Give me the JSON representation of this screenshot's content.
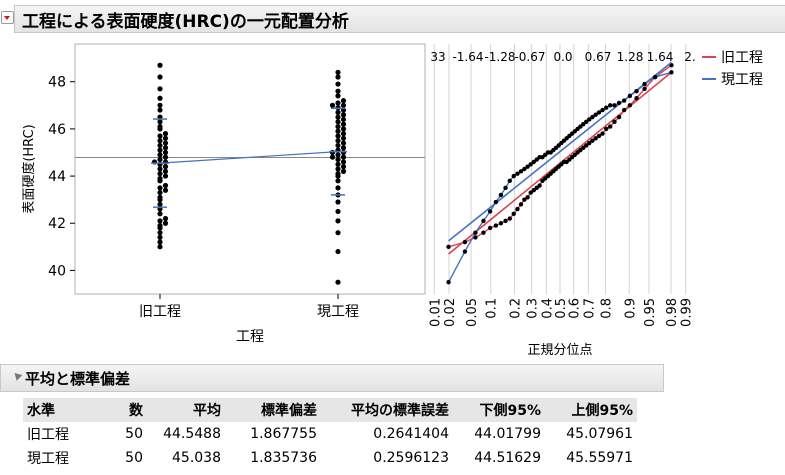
{
  "report": {
    "title": "工程による表面硬度(HRC)の一元配置分析"
  },
  "chart_data": {
    "type": "scatter",
    "xlabel": "工程",
    "ylabel": "表面硬度(HRC)",
    "categories": [
      "旧工程",
      "現工程"
    ],
    "ylim": [
      39,
      49.6
    ],
    "y_ticks": [
      40,
      42,
      44,
      46,
      48
    ],
    "grand_mean": 44.79,
    "series": [
      {
        "name": "旧工程",
        "color": "#4472c4",
        "mean": 44.5488,
        "sd": 1.867755,
        "values": [
          41.0,
          41.2,
          41.4,
          41.6,
          41.8,
          41.9,
          42.0,
          42.1,
          42.2,
          42.4,
          42.6,
          42.8,
          43.0,
          43.1,
          43.3,
          43.4,
          43.5,
          43.6,
          43.8,
          43.9,
          44.0,
          44.1,
          44.2,
          44.3,
          44.4,
          44.5,
          44.6,
          44.6,
          44.7,
          44.8,
          44.9,
          45.0,
          45.1,
          45.2,
          45.3,
          45.4,
          45.5,
          45.6,
          45.7,
          45.8,
          46.0,
          46.1,
          46.3,
          46.5,
          46.8,
          47.0,
          47.3,
          47.7,
          48.2,
          48.7
        ]
      },
      {
        "name": "現工程",
        "color": "#4472c4",
        "mean": 45.038,
        "sd": 1.835736,
        "values": [
          39.5,
          40.8,
          41.6,
          42.1,
          42.5,
          42.9,
          43.2,
          43.5,
          43.8,
          44.0,
          44.1,
          44.2,
          44.3,
          44.4,
          44.5,
          44.6,
          44.7,
          44.8,
          44.8,
          44.9,
          45.0,
          45.0,
          45.1,
          45.2,
          45.3,
          45.4,
          45.5,
          45.6,
          45.7,
          45.8,
          45.9,
          46.0,
          46.1,
          46.2,
          46.3,
          46.4,
          46.5,
          46.6,
          46.7,
          46.8,
          46.9,
          47.0,
          47.0,
          47.1,
          47.2,
          47.4,
          47.6,
          47.9,
          48.2,
          48.4
        ]
      }
    ],
    "normal_quantile_plot": {
      "xlabel": "正規分位点",
      "bottom_ticks": [
        "0.01",
        "0.02",
        "0.05",
        "0.1",
        "0.2",
        "0.3",
        "0.4",
        "0.5",
        "0.6",
        "0.7",
        "0.8",
        "0.9",
        "0.95",
        "0.98",
        "0.99"
      ],
      "top_ticks": [
        "33",
        "-1.64",
        "-1.28",
        "-0.67",
        "0.0",
        "0.67",
        "1.28",
        "1.64",
        "2."
      ],
      "legend": [
        {
          "label": "旧工程",
          "color": "#d9434e"
        },
        {
          "label": "現工程",
          "color": "#4472c4"
        }
      ]
    }
  },
  "summary_table": {
    "title": "平均と標準偏差",
    "headers": [
      "水準",
      "数",
      "平均",
      "標準偏差",
      "平均の標準誤差",
      "下側95%",
      "上側95%"
    ],
    "rows": [
      [
        "旧工程",
        "50",
        "44.5488",
        "1.867755",
        "0.2641404",
        "44.01799",
        "45.07961"
      ],
      [
        "現工程",
        "50",
        "45.038",
        "1.835736",
        "0.2596123",
        "44.51629",
        "45.55971"
      ]
    ]
  }
}
